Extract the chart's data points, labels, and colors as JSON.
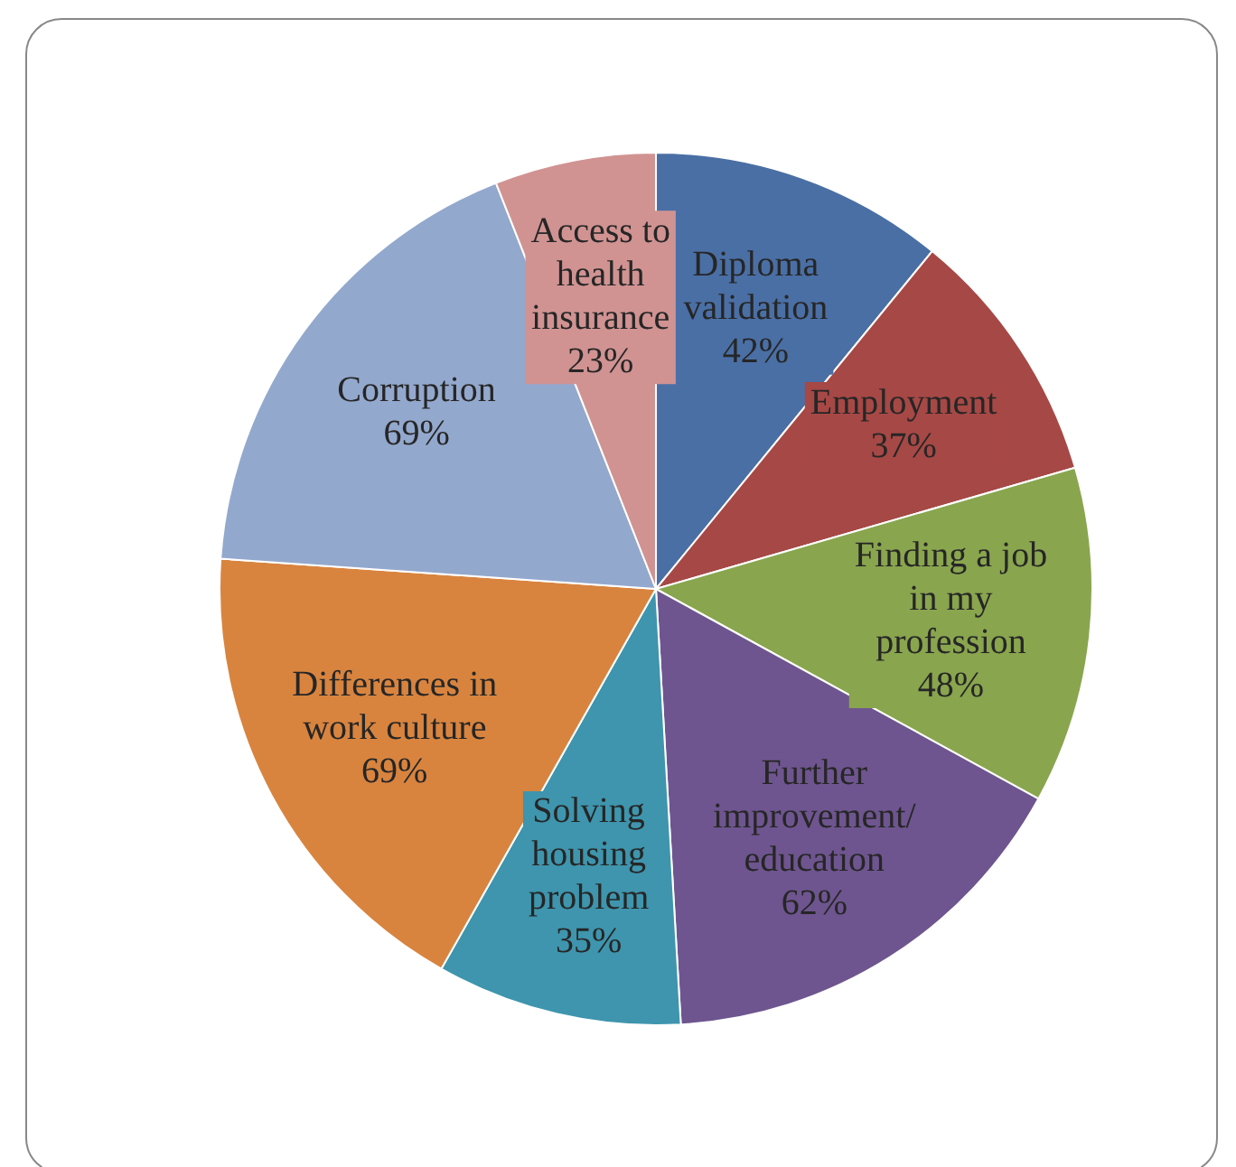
{
  "chart_data": {
    "type": "pie",
    "categories": [
      "Diploma validation",
      "Employment",
      "Finding a job in my profession",
      "Further improvement/ education",
      "Solving housing problem",
      "Differences in work culture",
      "Corruption",
      "Access to health insurance"
    ],
    "values": [
      42,
      37,
      48,
      62,
      35,
      69,
      69,
      23
    ],
    "value_labels": [
      "42%",
      "37%",
      "48%",
      "62%",
      "35%",
      "69%",
      "69%",
      "23%"
    ],
    "colors": [
      "#4a6fa5",
      "#a64845",
      "#89a54e",
      "#6e558f",
      "#3e95ad",
      "#d8843f",
      "#93a8cd",
      "#d09392"
    ],
    "legend": false
  }
}
